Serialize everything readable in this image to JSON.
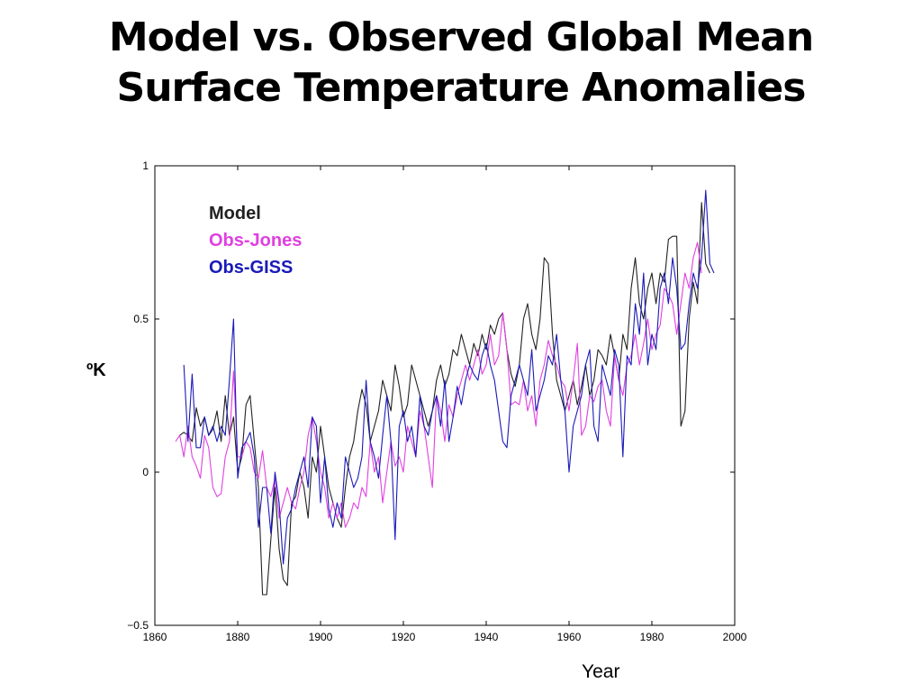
{
  "slide": {
    "title_line1": "Model vs. Observed Global Mean",
    "title_line2": "Surface Temperature Anomalies"
  },
  "chart_data": {
    "type": "line",
    "title": "",
    "xlabel": "Year",
    "ylabel": "ºK",
    "xlim": [
      1860,
      2000
    ],
    "ylim": [
      -0.5,
      1
    ],
    "xticks": [
      1860,
      1880,
      1900,
      1920,
      1940,
      1960,
      1980,
      2000
    ],
    "yticks": [
      -0.5,
      0,
      0.5,
      1
    ],
    "ytick_labels": [
      "−0.5",
      "0",
      "0.5",
      "1"
    ],
    "grid": false,
    "legend_placement": "top-left",
    "series": [
      {
        "name": "Model",
        "color": "#222222",
        "x_start": 1866,
        "values": [
          0.12,
          0.13,
          0.12,
          0.1,
          0.21,
          0.15,
          0.18,
          0.12,
          0.14,
          0.2,
          0.1,
          0.25,
          0.12,
          0.18,
          0.0,
          0.05,
          0.22,
          0.25,
          0.1,
          -0.05,
          -0.4,
          -0.4,
          -0.22,
          -0.05,
          -0.25,
          -0.35,
          -0.37,
          -0.1,
          -0.08,
          0.0,
          -0.05,
          -0.15,
          0.05,
          0.0,
          0.15,
          0.05,
          -0.05,
          -0.1,
          -0.15,
          -0.18,
          -0.05,
          0.05,
          0.1,
          0.2,
          0.27,
          0.22,
          0.1,
          0.15,
          0.2,
          0.3,
          0.25,
          0.2,
          0.35,
          0.28,
          0.18,
          0.22,
          0.35,
          0.3,
          0.25,
          0.2,
          0.15,
          0.2,
          0.3,
          0.35,
          0.28,
          0.32,
          0.4,
          0.38,
          0.45,
          0.4,
          0.35,
          0.42,
          0.38,
          0.45,
          0.4,
          0.48,
          0.45,
          0.5,
          0.52,
          0.4,
          0.32,
          0.28,
          0.35,
          0.5,
          0.55,
          0.45,
          0.4,
          0.5,
          0.7,
          0.68,
          0.45,
          0.3,
          0.25,
          0.2,
          0.25,
          0.3,
          0.22,
          0.28,
          0.35,
          0.25,
          0.3,
          0.4,
          0.38,
          0.35,
          0.45,
          0.38,
          0.3,
          0.45,
          0.4,
          0.6,
          0.7,
          0.55,
          0.5,
          0.6,
          0.65,
          0.55,
          0.65,
          0.62,
          0.76,
          0.77,
          0.77,
          0.15,
          0.2,
          0.5,
          0.62,
          0.55,
          0.88,
          0.68,
          0.65
        ]
      },
      {
        "name": "Obs-Jones",
        "color": "#e040e0",
        "x_start": 1865,
        "values": [
          0.1,
          0.12,
          0.05,
          0.15,
          0.05,
          0.02,
          -0.02,
          0.12,
          0.08,
          -0.05,
          -0.08,
          -0.07,
          0.05,
          0.1,
          0.33,
          0.05,
          0.05,
          0.1,
          0.08,
          0.0,
          -0.02,
          0.07,
          -0.05,
          -0.08,
          -0.02,
          -0.15,
          -0.1,
          -0.05,
          -0.1,
          -0.12,
          -0.05,
          0.0,
          0.12,
          0.18,
          0.1,
          0.0,
          -0.05,
          -0.15,
          -0.1,
          -0.15,
          -0.1,
          -0.18,
          -0.15,
          -0.1,
          -0.12,
          -0.05,
          -0.08,
          0.1,
          0.0,
          0.05,
          -0.1,
          0.0,
          0.1,
          0.02,
          0.05,
          0.0,
          0.15,
          0.1,
          0.05,
          0.2,
          0.15,
          0.05,
          -0.05,
          0.25,
          0.2,
          0.1,
          0.22,
          0.18,
          0.25,
          0.3,
          0.35,
          0.3,
          0.35,
          0.4,
          0.32,
          0.35,
          0.45,
          0.35,
          0.38,
          0.52,
          0.4,
          0.22,
          0.23,
          0.22,
          0.3,
          0.2,
          0.25,
          0.15,
          0.3,
          0.35,
          0.43,
          0.38,
          0.35,
          0.3,
          0.28,
          0.2,
          0.3,
          0.42,
          0.12,
          0.15,
          0.25,
          0.23,
          0.28,
          0.3,
          0.2,
          0.15,
          0.38,
          0.3,
          0.25,
          0.35,
          0.38,
          0.45,
          0.35,
          0.42,
          0.5,
          0.4,
          0.45,
          0.48,
          0.6,
          0.58,
          0.55,
          0.45,
          0.55,
          0.65,
          0.6,
          0.7,
          0.75,
          0.65
        ]
      },
      {
        "name": "Obs-GISS",
        "color": "#1a1ab8",
        "x_start": 1867,
        "values": [
          0.35,
          0.1,
          0.32,
          0.08,
          0.08,
          0.18,
          0.12,
          0.15,
          0.1,
          0.15,
          0.12,
          0.3,
          0.5,
          -0.02,
          0.08,
          0.1,
          0.13,
          0.05,
          -0.18,
          -0.05,
          -0.05,
          -0.2,
          0.0,
          -0.1,
          -0.3,
          -0.15,
          -0.12,
          -0.05,
          0.0,
          0.05,
          -0.05,
          0.18,
          0.15,
          -0.1,
          0.05,
          -0.12,
          -0.18,
          -0.1,
          -0.15,
          0.05,
          0.0,
          -0.05,
          -0.02,
          0.05,
          0.3,
          0.1,
          0.05,
          -0.02,
          0.12,
          0.25,
          0.1,
          -0.22,
          0.15,
          0.2,
          0.1,
          0.15,
          0.05,
          0.25,
          0.15,
          0.12,
          0.2,
          0.25,
          0.15,
          0.3,
          0.1,
          0.18,
          0.28,
          0.22,
          0.3,
          0.35,
          0.32,
          0.3,
          0.38,
          0.42,
          0.35,
          0.3,
          0.2,
          0.1,
          0.08,
          0.25,
          0.3,
          0.35,
          0.3,
          0.25,
          0.4,
          0.2,
          0.25,
          0.3,
          0.38,
          0.35,
          0.45,
          0.3,
          0.2,
          0.0,
          0.15,
          0.2,
          0.25,
          0.35,
          0.4,
          0.15,
          0.1,
          0.35,
          0.3,
          0.25,
          0.4,
          0.35,
          0.05,
          0.38,
          0.35,
          0.55,
          0.45,
          0.65,
          0.35,
          0.45,
          0.4,
          0.6,
          0.65,
          0.55,
          0.7,
          0.6,
          0.4,
          0.42,
          0.55,
          0.65,
          0.6,
          0.7,
          0.92,
          0.68,
          0.65
        ]
      }
    ]
  }
}
